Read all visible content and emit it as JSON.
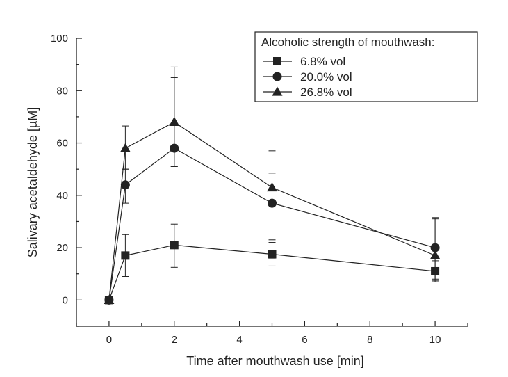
{
  "chart_data": {
    "type": "line",
    "xlabel": "Time after mouthwash use [min]",
    "ylabel": "Salivary acetaldehyde [µM]",
    "xlim": [
      -1,
      11
    ],
    "ylim": [
      -10,
      100
    ],
    "xticks": [
      0,
      2,
      4,
      6,
      8,
      10
    ],
    "yticks": [
      0,
      20,
      40,
      60,
      80,
      100
    ],
    "grid": false,
    "legend_title": "Alcoholic strength of mouthwash:",
    "legend_position": "top-right",
    "x": [
      0,
      0.5,
      2,
      5,
      10
    ],
    "series": [
      {
        "name": "6.8% vol",
        "marker": "square",
        "values": [
          0,
          17,
          21,
          17.5,
          11
        ],
        "error_low": [
          0,
          9,
          12.5,
          13,
          7.5
        ],
        "error_high": [
          0,
          25,
          29,
          23,
          15
        ]
      },
      {
        "name": "20.0% vol",
        "marker": "circle",
        "values": [
          0,
          44,
          58,
          37,
          20
        ],
        "error_low": [
          0,
          37,
          51,
          16,
          8
        ],
        "error_high": [
          0,
          50,
          85,
          57,
          31.5
        ]
      },
      {
        "name": "26.8% vol",
        "marker": "triangle",
        "values": [
          0,
          58,
          68,
          43,
          17
        ],
        "error_low": [
          0,
          50,
          51,
          22,
          7
        ],
        "error_high": [
          0,
          66.5,
          89,
          48.5,
          31
        ]
      }
    ]
  }
}
